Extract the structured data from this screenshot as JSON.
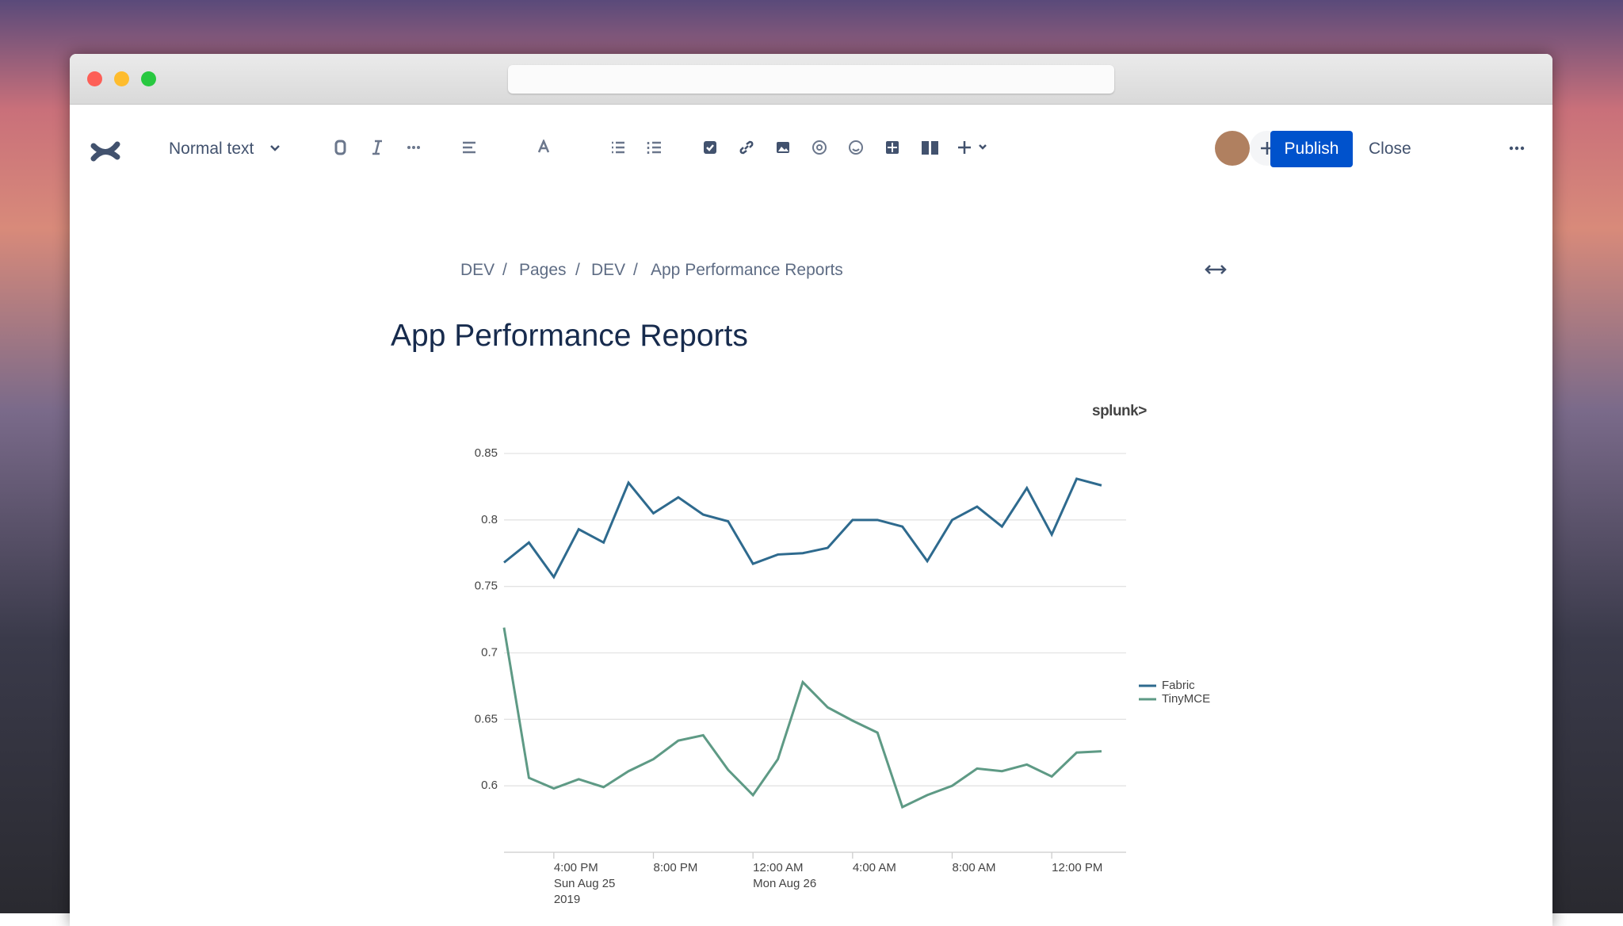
{
  "toolbar": {
    "text_style": "Normal text",
    "publish": "Publish",
    "close": "Close"
  },
  "breadcrumb": [
    "DEV",
    "Pages",
    "DEV",
    "App Performance Reports"
  ],
  "breadcrumb_separator": "/",
  "page_title": "App Performance Reports",
  "logo": "splunk>",
  "chart_data": {
    "type": "line",
    "categories": [
      null,
      null,
      "4:00 PM\nSun Aug 25\n2019",
      null,
      null,
      null,
      "8:00 PM",
      null,
      null,
      null,
      "12:00 AM\nMon Aug 26",
      null,
      null,
      null,
      "4:00 AM",
      null,
      null,
      null,
      "8:00 AM",
      null,
      null,
      null,
      "12:00 PM",
      null,
      null
    ],
    "series": [
      {
        "name": "Fabric",
        "color": "#2e6a8e",
        "values": [
          0.768,
          0.783,
          0.757,
          0.793,
          0.783,
          0.828,
          0.805,
          0.817,
          0.804,
          0.799,
          0.767,
          0.774,
          0.775,
          0.779,
          0.8,
          0.8,
          0.795,
          0.769,
          0.8,
          0.81,
          0.795,
          0.824,
          0.789,
          0.831,
          0.826
        ]
      },
      {
        "name": "TinyMCE",
        "color": "#5e9a85",
        "values": [
          0.719,
          0.606,
          0.598,
          0.605,
          0.599,
          0.611,
          0.62,
          0.634,
          0.638,
          0.612,
          0.593,
          0.62,
          0.678,
          0.659,
          0.649,
          0.64,
          0.584,
          0.593,
          0.6,
          0.613,
          0.611,
          0.616,
          0.607,
          0.625,
          0.626
        ]
      }
    ],
    "ylim": [
      0.55,
      0.85
    ],
    "yticks": [
      0.6,
      0.65,
      0.7,
      0.75,
      0.8,
      0.85
    ],
    "grid": true,
    "legend": "right"
  }
}
